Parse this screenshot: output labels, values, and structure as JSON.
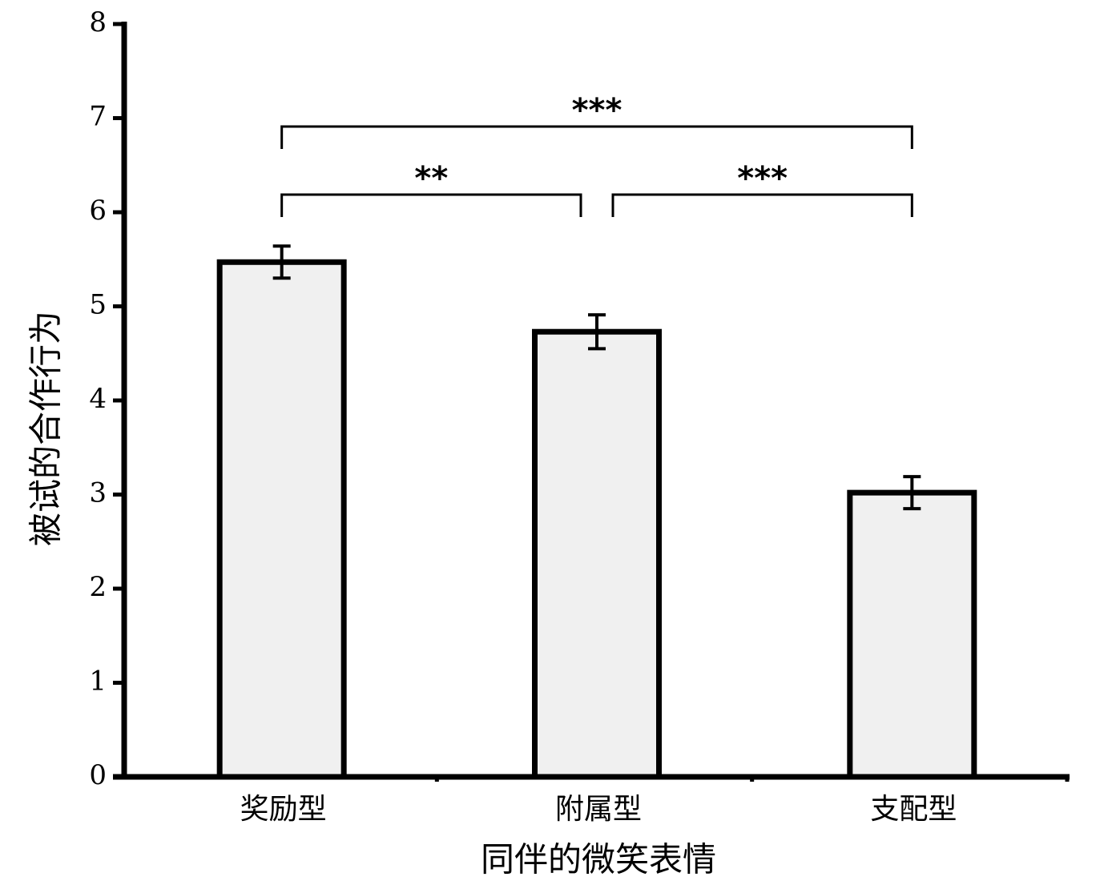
{
  "chart_data": {
    "type": "bar",
    "x_label": "同伴的微笑表情",
    "y_label": "被试的合作行为",
    "categories": [
      "奖励型",
      "附属型",
      "支配型"
    ],
    "values": [
      5.47,
      4.73,
      3.02
    ],
    "errors": [
      0.17,
      0.18,
      0.17
    ],
    "color": "#f0f0f0",
    "ylim": [
      0,
      8
    ],
    "yticks": [
      0,
      1,
      2,
      3,
      4,
      5,
      6,
      7,
      8
    ],
    "annotations": [
      "***",
      "**",
      "***"
    ]
  }
}
